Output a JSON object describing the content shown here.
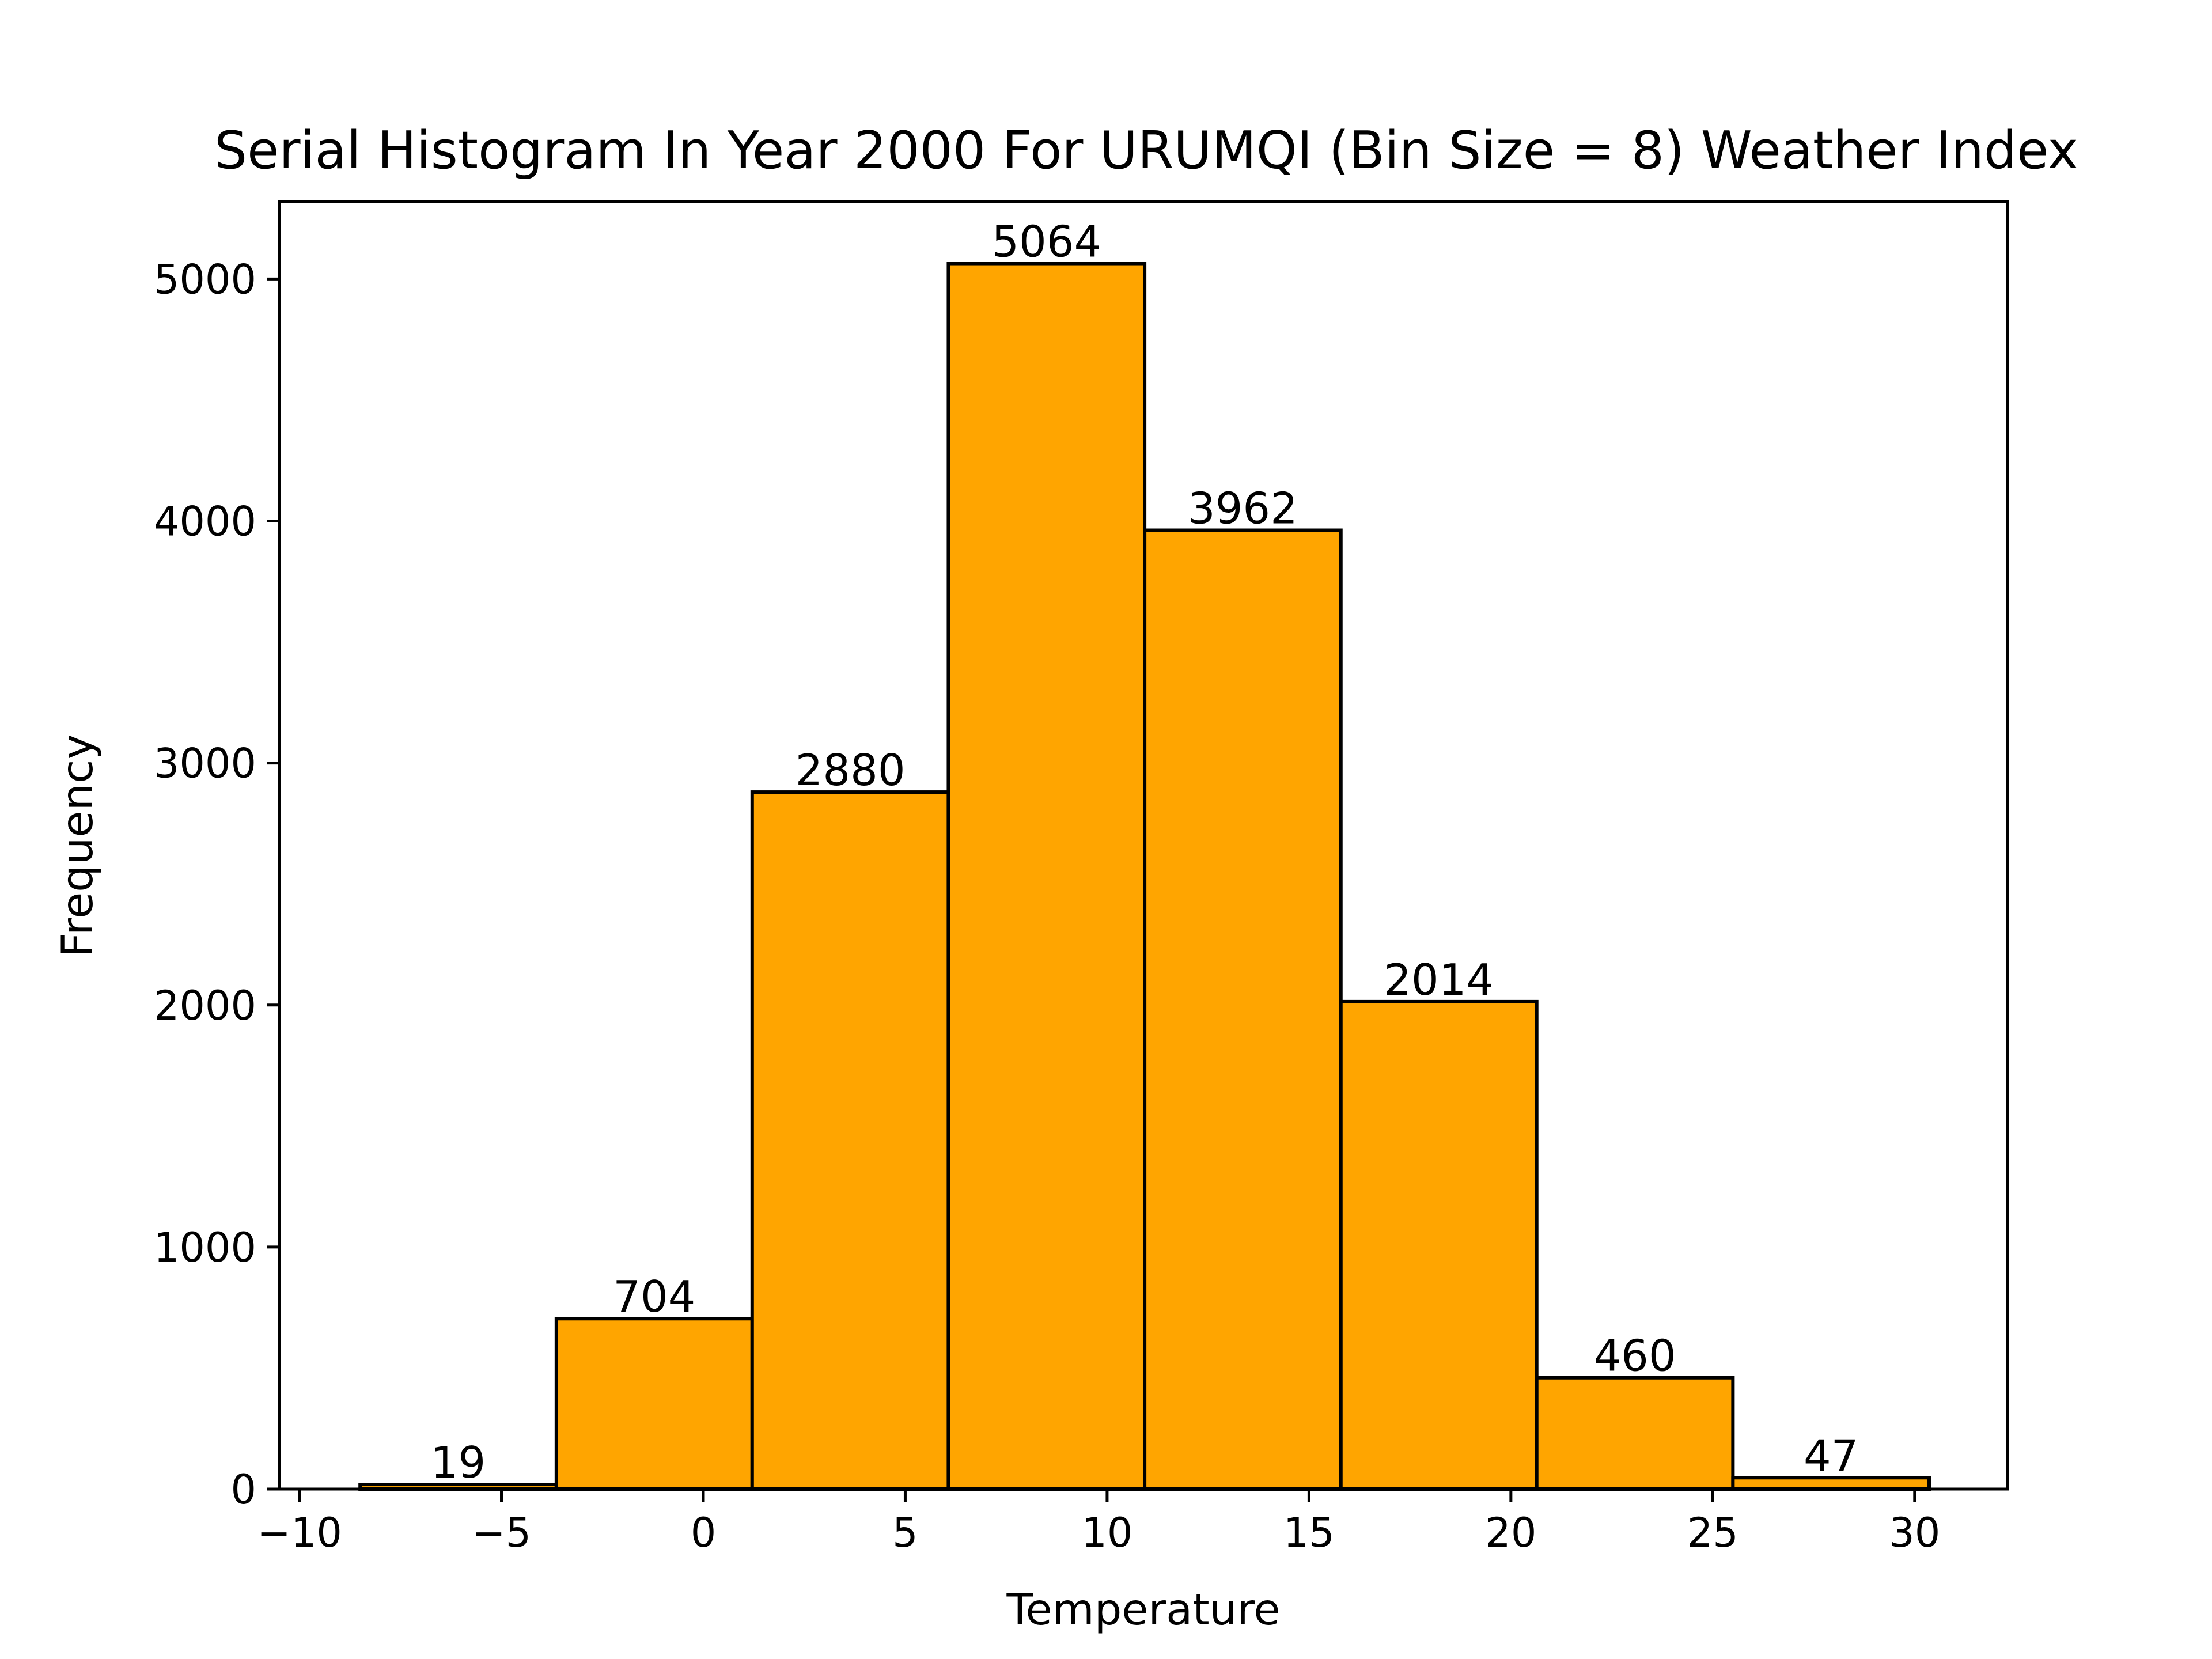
{
  "chart_data": {
    "type": "bar",
    "title": "Serial Histogram In Year 2000 For URUMQI (Bin Size = 8) Weather Index",
    "xlabel": "Temperature",
    "ylabel": "Frequency",
    "bar_color": "#FFA500",
    "edge_color": "#000000",
    "xlim": [
      -10.5,
      32.3
    ],
    "ylim": [
      0,
      5320
    ],
    "xticks": [
      -10,
      -5,
      0,
      5,
      10,
      15,
      20,
      25,
      30
    ],
    "xtick_labels": [
      "−10",
      "−5",
      "0",
      "5",
      "10",
      "15",
      "20",
      "25",
      "30"
    ],
    "yticks": [
      0,
      1000,
      2000,
      3000,
      4000,
      5000
    ],
    "ytick_labels": [
      "0",
      "1000",
      "2000",
      "3000",
      "4000",
      "5000"
    ],
    "bin_edges": [
      -8.5,
      -3.64,
      1.21,
      6.07,
      10.93,
      15.79,
      20.64,
      25.5,
      30.36
    ],
    "values": [
      19,
      704,
      2880,
      5064,
      3962,
      2014,
      460,
      47
    ],
    "value_labels": [
      "19",
      "704",
      "2880",
      "5064",
      "3962",
      "2014",
      "460",
      "47"
    ],
    "grid": false
  }
}
